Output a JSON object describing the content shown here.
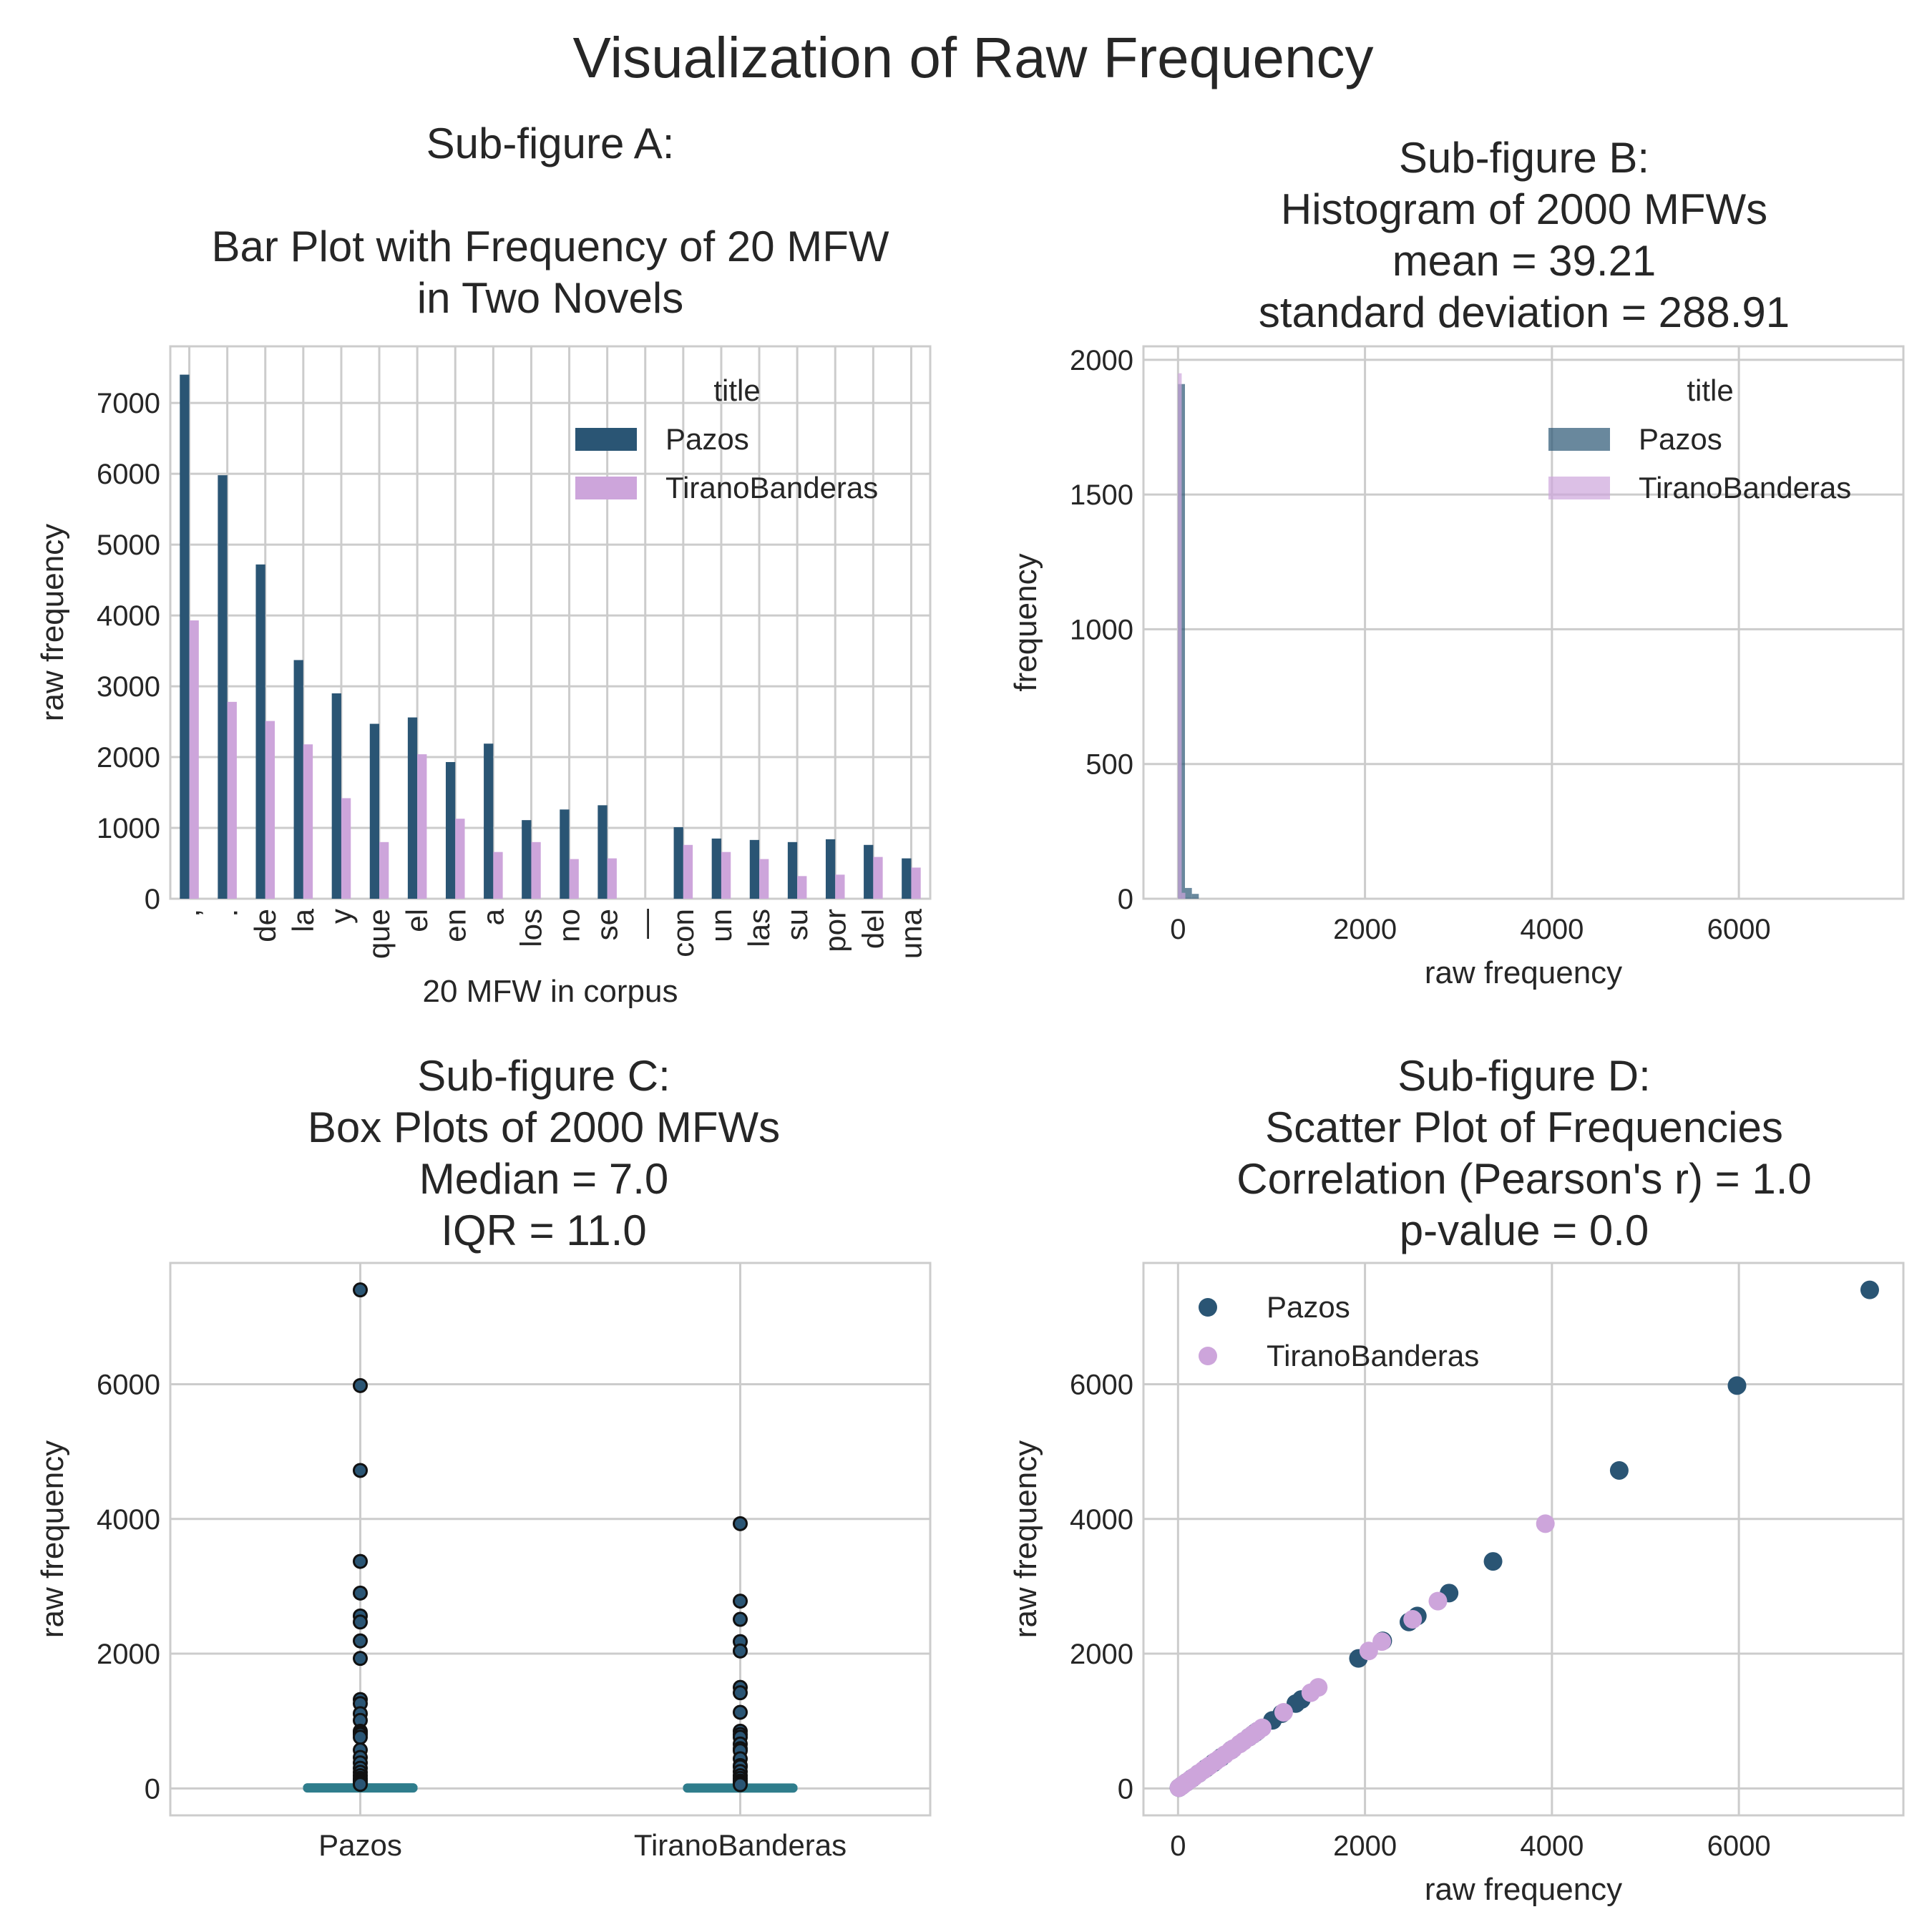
{
  "suptitle": "Visualization of Raw Frequency",
  "colors": {
    "pazos": "#2a5574",
    "tirano": "#cda5db",
    "box": "#2f7d8c",
    "grid": "#cccccc",
    "spine": "#cccccc",
    "outlier_edge": "#111111",
    "hist_overlap": "#a98cc2"
  },
  "chart_data": [
    {
      "id": "A",
      "type": "bar",
      "title": [
        "Sub-figure A:",
        "",
        "Bar Plot with Frequency of 20 MFW",
        "in Two Novels"
      ],
      "xlabel": "20 MFW in corpus",
      "ylabel": "raw frequency",
      "categories": [
        ",",
        ".",
        "de",
        "la",
        "y",
        "que",
        "el",
        "en",
        "a",
        "los",
        "no",
        "se",
        "—",
        "con",
        "un",
        "las",
        "su",
        "por",
        "del",
        "una"
      ],
      "series": [
        {
          "name": "Pazos",
          "values": [
            7400,
            5980,
            4720,
            3370,
            2900,
            2470,
            2560,
            1930,
            2190,
            1110,
            1260,
            1320,
            0,
            1010,
            850,
            830,
            800,
            840,
            760,
            570
          ]
        },
        {
          "name": "TiranoBanderas",
          "values": [
            3930,
            2780,
            2510,
            2180,
            1420,
            800,
            2040,
            1130,
            660,
            800,
            560,
            570,
            0,
            760,
            660,
            560,
            320,
            340,
            590,
            440
          ]
        }
      ],
      "ylim": [
        0,
        7800
      ],
      "yticks": [
        0,
        1000,
        2000,
        3000,
        4000,
        5000,
        6000,
        7000
      ],
      "legend": {
        "title": "title",
        "loc": "upper right"
      },
      "grid": true
    },
    {
      "id": "B",
      "type": "histogram",
      "title": [
        "Sub-figure B:",
        "Histogram of 2000 MFWs",
        "mean =  39.21",
        "standard deviation = 288.91"
      ],
      "xlabel": "raw frequency",
      "ylabel": "frequency",
      "xlim": [
        -370,
        7760
      ],
      "ylim": [
        0,
        2050
      ],
      "xticks": [
        0,
        2000,
        4000,
        6000
      ],
      "yticks": [
        0,
        500,
        1000,
        1500,
        2000
      ],
      "series": [
        {
          "name": "Pazos",
          "bins": [
            {
              "x0": 0,
              "x1": 74,
              "count": 1910
            },
            {
              "x0": 74,
              "x1": 148,
              "count": 40
            },
            {
              "x0": 148,
              "x1": 222,
              "count": 18
            }
          ]
        },
        {
          "name": "TiranoBanderas",
          "bins": [
            {
              "x0": 0,
              "x1": 39,
              "count": 1950
            },
            {
              "x0": 39,
              "x1": 78,
              "count": 22
            }
          ]
        }
      ],
      "legend": {
        "title": "title",
        "loc": "upper right"
      },
      "grid": true
    },
    {
      "id": "C",
      "type": "box",
      "title": [
        "Sub-figure C:",
        "Box Plots of 2000 MFWs",
        "Median =  7.0",
        "IQR = 11.0"
      ],
      "ylabel": "raw frequency",
      "categories": [
        "Pazos",
        "TiranoBanderas"
      ],
      "ylim": [
        -400,
        7800
      ],
      "yticks": [
        0,
        2000,
        4000,
        6000
      ],
      "series": [
        {
          "name": "Pazos",
          "median": 7,
          "q1": 2,
          "q3": 13,
          "whisker_low": 0,
          "whisker_high": 30,
          "outliers": [
            7400,
            5980,
            4720,
            3370,
            2900,
            2560,
            2470,
            2190,
            1930,
            1320,
            1260,
            1110,
            1010,
            850,
            830,
            800,
            760,
            570,
            460,
            380,
            300,
            240,
            190,
            150,
            120,
            90,
            60
          ]
        },
        {
          "name": "TiranoBanderas",
          "median": 5,
          "q1": 1,
          "q3": 10,
          "whisker_low": 0,
          "whisker_high": 24,
          "outliers": [
            3930,
            2780,
            2510,
            2180,
            2040,
            1500,
            1420,
            1130,
            850,
            800,
            760,
            660,
            590,
            560,
            440,
            340,
            320,
            250,
            190,
            150,
            110,
            80,
            55
          ]
        }
      ],
      "grid": true
    },
    {
      "id": "D",
      "type": "scatter",
      "title": [
        "Sub-figure D:",
        "Scatter Plot of Frequencies",
        "Correlation (Pearson's r) =  1.0",
        "p-value = 0.0"
      ],
      "xlabel": "raw frequency",
      "ylabel": "raw frequency",
      "xlim": [
        -370,
        7760
      ],
      "ylim": [
        -400,
        7800
      ],
      "xticks": [
        0,
        2000,
        4000,
        6000
      ],
      "yticks": [
        0,
        2000,
        4000,
        6000
      ],
      "series": [
        {
          "name": "Pazos",
          "points": [
            [
              7400,
              7400
            ],
            [
              5980,
              5980
            ],
            [
              4720,
              4720
            ],
            [
              3370,
              3370
            ],
            [
              2900,
              2900
            ],
            [
              2560,
              2560
            ],
            [
              2470,
              2470
            ],
            [
              2190,
              2190
            ],
            [
              1930,
              1930
            ],
            [
              1320,
              1320
            ],
            [
              1260,
              1260
            ],
            [
              1110,
              1110
            ],
            [
              1010,
              1010
            ],
            [
              850,
              850
            ],
            [
              830,
              830
            ],
            [
              800,
              800
            ],
            [
              760,
              760
            ],
            [
              570,
              570
            ],
            [
              460,
              460
            ],
            [
              380,
              380
            ],
            [
              300,
              300
            ],
            [
              220,
              220
            ],
            [
              150,
              150
            ],
            [
              90,
              90
            ],
            [
              40,
              40
            ],
            [
              10,
              10
            ]
          ]
        },
        {
          "name": "TiranoBanderas",
          "points": [
            [
              3930,
              3930
            ],
            [
              2780,
              2780
            ],
            [
              2510,
              2510
            ],
            [
              2180,
              2180
            ],
            [
              2040,
              2040
            ],
            [
              1500,
              1500
            ],
            [
              1420,
              1420
            ],
            [
              1130,
              1130
            ],
            [
              900,
              900
            ],
            [
              850,
              850
            ],
            [
              800,
              800
            ],
            [
              760,
              760
            ],
            [
              700,
              700
            ],
            [
              660,
              660
            ],
            [
              590,
              590
            ],
            [
              560,
              560
            ],
            [
              500,
              500
            ],
            [
              440,
              440
            ],
            [
              400,
              400
            ],
            [
              340,
              340
            ],
            [
              320,
              320
            ],
            [
              270,
              270
            ],
            [
              220,
              220
            ],
            [
              170,
              170
            ],
            [
              130,
              130
            ],
            [
              90,
              90
            ],
            [
              60,
              60
            ],
            [
              30,
              30
            ],
            [
              10,
              10
            ]
          ]
        }
      ],
      "legend": {
        "loc": "upper left"
      },
      "grid": true
    }
  ]
}
